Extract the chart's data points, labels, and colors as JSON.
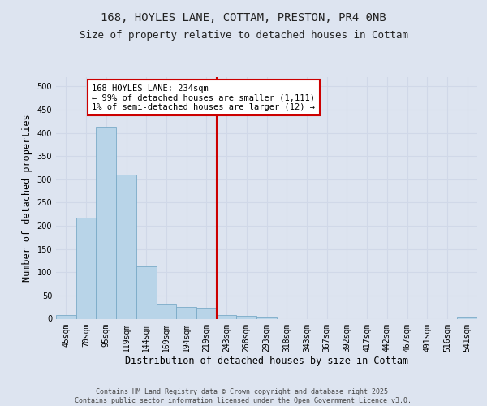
{
  "title_line1": "168, HOYLES LANE, COTTAM, PRESTON, PR4 0NB",
  "title_line2": "Size of property relative to detached houses in Cottam",
  "xlabel": "Distribution of detached houses by size in Cottam",
  "ylabel": "Number of detached properties",
  "footer_line1": "Contains HM Land Registry data © Crown copyright and database right 2025.",
  "footer_line2": "Contains public sector information licensed under the Open Government Licence v3.0.",
  "categories": [
    "45sqm",
    "70sqm",
    "95sqm",
    "119sqm",
    "144sqm",
    "169sqm",
    "194sqm",
    "219sqm",
    "243sqm",
    "268sqm",
    "293sqm",
    "318sqm",
    "343sqm",
    "367sqm",
    "392sqm",
    "417sqm",
    "442sqm",
    "467sqm",
    "491sqm",
    "516sqm",
    "541sqm"
  ],
  "values": [
    8,
    218,
    412,
    310,
    113,
    30,
    25,
    23,
    8,
    6,
    2,
    0,
    0,
    0,
    0,
    0,
    0,
    0,
    0,
    0,
    3
  ],
  "bar_color": "#b8d4e8",
  "bar_edge_color": "#7aaac8",
  "annotation_box_text": "168 HOYLES LANE: 234sqm\n← 99% of detached houses are smaller (1,111)\n1% of semi-detached houses are larger (12) →",
  "annotation_box_color": "#ffffff",
  "annotation_box_edge_color": "#cc0000",
  "vline_x_index": 8,
  "vline_color": "#cc0000",
  "ylim": [
    0,
    520
  ],
  "yticks": [
    0,
    50,
    100,
    150,
    200,
    250,
    300,
    350,
    400,
    450,
    500
  ],
  "grid_color": "#d0d8e8",
  "bg_color": "#dde4f0",
  "fig_bg_color": "#dde4f0",
  "title_fontsize": 10,
  "subtitle_fontsize": 9,
  "axis_label_fontsize": 8.5,
  "tick_fontsize": 7,
  "annotation_fontsize": 7.5,
  "footer_fontsize": 6
}
